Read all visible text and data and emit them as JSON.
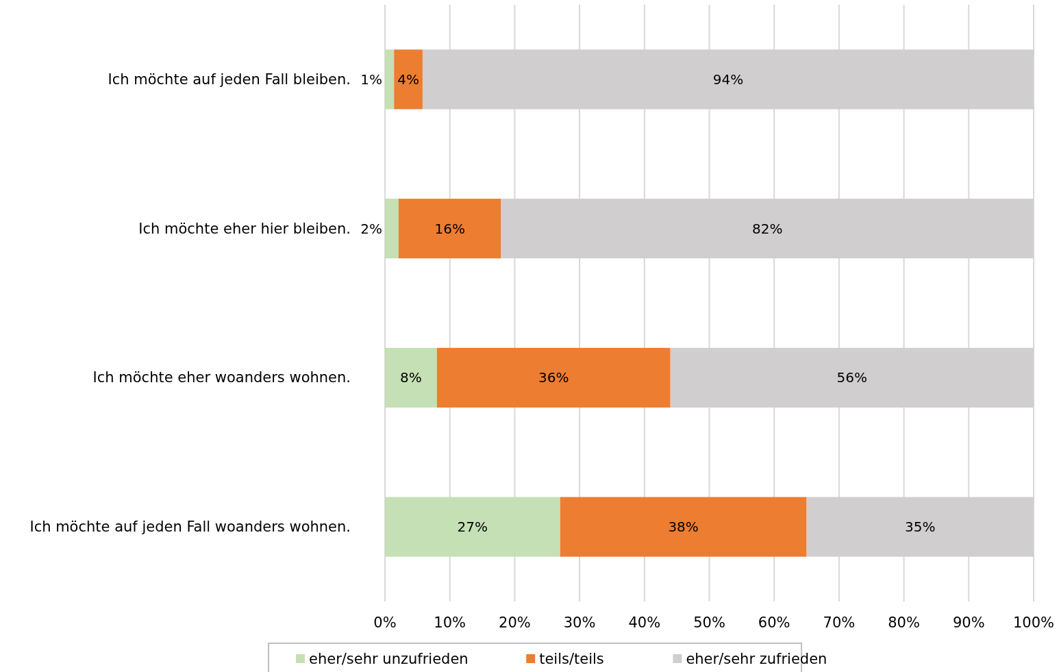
{
  "chart_data": {
    "type": "bar",
    "orientation": "horizontal",
    "stacked": true,
    "categories": [
      "Ich möchte auf jeden Fall bleiben.",
      "Ich möchte eher hier bleiben.",
      "Ich möchte eher woanders wohnen.",
      "Ich möchte auf jeden Fall woanders wohnen."
    ],
    "series": [
      {
        "name": "eher/sehr unzufrieden",
        "color": "#c5e0b4",
        "values": [
          1.4,
          2.1,
          8,
          27
        ],
        "value_labels": [
          "1%",
          "2%",
          "8%",
          "27%"
        ]
      },
      {
        "name": "teils/teils",
        "color": "#ed7d31",
        "values": [
          4.4,
          15.8,
          36,
          38
        ],
        "value_labels": [
          "4%",
          "16%",
          "36%",
          "38%"
        ]
      },
      {
        "name": "eher/sehr zufrieden",
        "color": "#d0cece",
        "values": [
          94.2,
          82.1,
          56,
          35
        ],
        "value_labels": [
          "94%",
          "82%",
          "56%",
          "35%"
        ]
      }
    ],
    "xlim": [
      0,
      100
    ],
    "xticks": [
      {
        "value": 0,
        "label": "0%"
      },
      {
        "value": 10,
        "label": "10%"
      },
      {
        "value": 20,
        "label": "20%"
      },
      {
        "value": 30,
        "label": "30%"
      },
      {
        "value": 40,
        "label": "40%"
      },
      {
        "value": 50,
        "label": "50%"
      },
      {
        "value": 60,
        "label": "60%"
      },
      {
        "value": 70,
        "label": "70%"
      },
      {
        "value": 80,
        "label": "80%"
      },
      {
        "value": 90,
        "label": "90%"
      },
      {
        "value": 100,
        "label": "100%"
      }
    ],
    "grid": "x",
    "legend": "bottom"
  }
}
